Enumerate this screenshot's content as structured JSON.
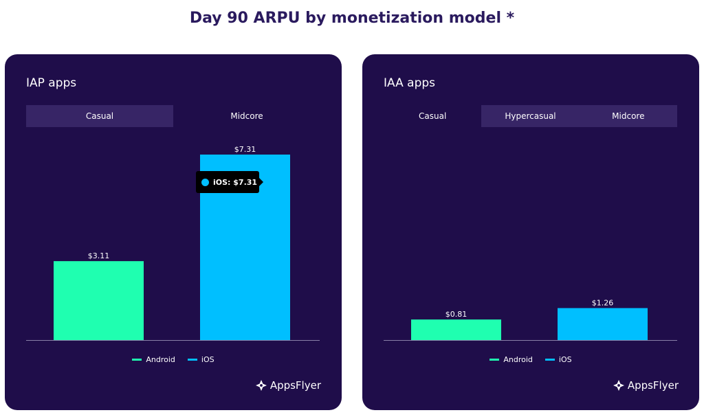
{
  "title": "Day 90 ARPU by monetization model *",
  "colors": {
    "android": "#1fffb0",
    "ios": "#00bfff",
    "background": "#1f0d4a"
  },
  "legend": {
    "android": "Android",
    "ios": "iOS"
  },
  "logo": {
    "text": "AppsFlyer",
    "icon": "appsflyer-logo-icon"
  },
  "panels": [
    {
      "title": "IAP apps",
      "tabs": [
        {
          "label": "Casual",
          "active": false
        },
        {
          "label": "Midcore",
          "active": true
        }
      ],
      "tooltip": {
        "series": "iOS",
        "text": "iOS: $7.31"
      }
    },
    {
      "title": "IAA apps",
      "tabs": [
        {
          "label": "Casual",
          "active": true
        },
        {
          "label": "Hypercasual",
          "active": false
        },
        {
          "label": "Midcore",
          "active": false
        }
      ]
    }
  ],
  "chart_data": [
    {
      "type": "bar",
      "title": "IAP apps",
      "categories": [
        "Android",
        "iOS"
      ],
      "values": [
        3.11,
        7.31
      ],
      "labels": [
        "$3.11",
        "$7.31"
      ],
      "ylim": [
        0,
        7.31
      ],
      "grid": false,
      "legend": "bottom-center"
    },
    {
      "type": "bar",
      "title": "IAA apps",
      "categories": [
        "Android",
        "iOS"
      ],
      "values": [
        0.81,
        1.26
      ],
      "labels": [
        "$0.81",
        "$1.26"
      ],
      "ylim": [
        0,
        7.31
      ],
      "grid": false,
      "legend": "bottom-center"
    }
  ]
}
